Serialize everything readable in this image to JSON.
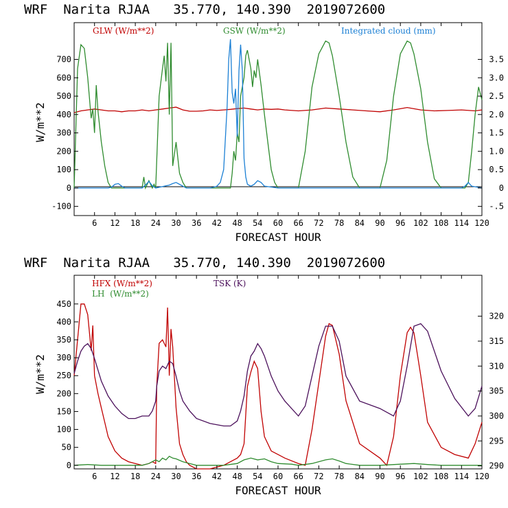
{
  "chart_data": [
    {
      "type": "line",
      "title": "WRF  Narita RJAA   35.770, 140.390  2019072600",
      "xlabel": "FORECAST HOUR",
      "ylabel": "W/m**2",
      "xlim": [
        0,
        120
      ],
      "ylim": [
        -150,
        900
      ],
      "y2lim": [
        -0.75,
        4.5
      ],
      "xticks": [
        6,
        12,
        18,
        24,
        30,
        36,
        42,
        48,
        54,
        60,
        66,
        72,
        78,
        84,
        90,
        96,
        102,
        108,
        114,
        120
      ],
      "yticks": [
        -100,
        0,
        100,
        200,
        300,
        400,
        500,
        600,
        700
      ],
      "y2ticks": [
        "-.5",
        "0",
        "0.5",
        "1.0",
        "1.5",
        "2.0",
        "2.5",
        "3.0",
        "3.5"
      ],
      "y2tick_values": [
        -0.5,
        0,
        0.5,
        1.0,
        1.5,
        2.0,
        2.5,
        3.0,
        3.5
      ],
      "grid": false,
      "legend": "top",
      "series": [
        {
          "name": "GLW (W/m**2)",
          "color": "#c00000",
          "axis": "left",
          "x": [
            0,
            2,
            4,
            6,
            8,
            10,
            12,
            14,
            16,
            18,
            20,
            22,
            24,
            26,
            28,
            30,
            32,
            34,
            36,
            38,
            40,
            42,
            44,
            46,
            48,
            50,
            52,
            54,
            56,
            58,
            60,
            62,
            66,
            70,
            74,
            78,
            82,
            86,
            90,
            94,
            98,
            102,
            106,
            110,
            114,
            118,
            120
          ],
          "y": [
            410,
            420,
            425,
            430,
            425,
            420,
            420,
            415,
            420,
            420,
            425,
            420,
            425,
            430,
            435,
            440,
            425,
            418,
            418,
            420,
            425,
            422,
            425,
            428,
            432,
            435,
            430,
            425,
            430,
            428,
            430,
            425,
            420,
            425,
            435,
            430,
            425,
            420,
            415,
            425,
            438,
            425,
            420,
            422,
            425,
            420,
            425
          ]
        },
        {
          "name": "GSW (W/m**2)",
          "color": "#2e8b2e",
          "axis": "left",
          "x": [
            0,
            1,
            2,
            3,
            4,
            5,
            5.5,
            6,
            6.5,
            7,
            8,
            9,
            10,
            11,
            12,
            20,
            20.5,
            21,
            22,
            23,
            23.5,
            24,
            25,
            26,
            26.5,
            27,
            27.5,
            28,
            28.5,
            29,
            30,
            31,
            32,
            33,
            34,
            46,
            46.5,
            47,
            47.5,
            48,
            48.5,
            49,
            50,
            50.5,
            51,
            52,
            52.5,
            53,
            53.5,
            54,
            55,
            56,
            57,
            58,
            59,
            60,
            66,
            68,
            70,
            72,
            74,
            75,
            76,
            78,
            80,
            82,
            84,
            90,
            92,
            94,
            96,
            98,
            99,
            100,
            102,
            104,
            106,
            108,
            115,
            116,
            117,
            118,
            119,
            120
          ],
          "y": [
            0,
            650,
            780,
            760,
            600,
            380,
            430,
            300,
            560,
            420,
            250,
            120,
            30,
            0,
            0,
            0,
            60,
            0,
            40,
            0,
            20,
            0,
            500,
            650,
            720,
            580,
            790,
            400,
            790,
            120,
            250,
            80,
            30,
            0,
            0,
            0,
            80,
            200,
            150,
            300,
            250,
            500,
            600,
            720,
            750,
            650,
            550,
            640,
            600,
            700,
            560,
            400,
            250,
            100,
            30,
            0,
            0,
            200,
            550,
            730,
            800,
            790,
            720,
            500,
            250,
            60,
            0,
            0,
            150,
            500,
            730,
            800,
            790,
            730,
            540,
            250,
            50,
            0,
            0,
            30,
            200,
            400,
            550,
            480
          ]
        },
        {
          "name": "Integrated cloud (mm)",
          "color": "#1a7fd4",
          "axis": "right",
          "x": [
            0,
            10,
            11,
            12,
            13,
            14,
            15,
            20,
            21,
            22,
            23,
            24,
            28,
            29,
            30,
            31,
            32,
            33,
            40,
            41,
            42,
            43,
            44,
            45,
            45.5,
            46,
            46.5,
            47,
            47.5,
            48,
            48.5,
            49,
            49.5,
            50,
            50.5,
            51,
            52,
            53,
            54,
            55,
            56,
            60,
            114,
            115,
            116,
            117,
            120
          ],
          "y": [
            0,
            0,
            0.02,
            0.1,
            0.12,
            0.05,
            0,
            0,
            0.08,
            0.18,
            0.06,
            0,
            0.08,
            0.12,
            0.15,
            0.1,
            0.05,
            0,
            0,
            0.02,
            0.05,
            0.15,
            0.5,
            2.2,
            3.5,
            4.05,
            2.6,
            2.3,
            2.7,
            1.4,
            3.2,
            3.9,
            3.2,
            0.8,
            0.3,
            0.1,
            0.05,
            0.1,
            0.2,
            0.15,
            0.05,
            0,
            0,
            0.05,
            0.15,
            0.05,
            0
          ]
        }
      ]
    },
    {
      "type": "line",
      "title": "WRF  Narita RJAA   35.770, 140.390  2019072600",
      "xlabel": "FORECAST HOUR",
      "ylabel": "W/m**2",
      "xlim": [
        0,
        120
      ],
      "ylim": [
        -10,
        530
      ],
      "y2lim": [
        289.4,
        328.2
      ],
      "xticks": [
        6,
        12,
        18,
        24,
        30,
        36,
        42,
        48,
        54,
        60,
        66,
        72,
        78,
        84,
        90,
        96,
        102,
        108,
        114,
        120
      ],
      "yticks": [
        0,
        50,
        100,
        150,
        200,
        250,
        300,
        350,
        400,
        450
      ],
      "y2ticks": [
        "290",
        "295",
        "300",
        "305",
        "310",
        "315",
        "320"
      ],
      "y2tick_values": [
        290,
        295,
        300,
        305,
        310,
        315,
        320
      ],
      "grid": false,
      "legend": "top-left",
      "series": [
        {
          "name": "HFX (W/m**2)",
          "color": "#c00000",
          "axis": "left",
          "x": [
            0,
            1,
            2,
            3,
            4,
            5,
            5.5,
            6,
            7,
            8,
            9,
            10,
            12,
            14,
            16,
            18,
            20,
            22,
            23,
            24,
            24.3,
            25,
            26,
            27,
            27.5,
            28,
            28.5,
            29,
            30,
            31,
            32,
            33,
            34,
            36,
            40,
            44,
            46,
            48,
            49,
            50,
            51,
            52,
            53,
            54,
            55,
            56,
            58,
            60,
            62,
            66,
            68,
            70,
            72,
            74,
            75,
            76,
            78,
            80,
            84,
            90,
            92,
            94,
            96,
            98,
            99,
            100,
            102,
            104,
            108,
            112,
            116,
            118,
            120
          ],
          "y": [
            250,
            350,
            450,
            450,
            420,
            320,
            390,
            250,
            200,
            160,
            120,
            80,
            40,
            20,
            10,
            5,
            0,
            5,
            10,
            5,
            220,
            340,
            350,
            330,
            440,
            250,
            380,
            330,
            160,
            60,
            30,
            10,
            0,
            -10,
            -10,
            0,
            10,
            20,
            30,
            60,
            220,
            260,
            290,
            270,
            150,
            80,
            40,
            30,
            20,
            5,
            0,
            100,
            230,
            360,
            395,
            390,
            310,
            180,
            60,
            20,
            0,
            80,
            250,
            370,
            385,
            370,
            250,
            120,
            50,
            30,
            20,
            60,
            120
          ]
        },
        {
          "name": "LH  (W/m**2)",
          "color": "#2e8b2e",
          "axis": "left",
          "x": [
            0,
            4,
            8,
            12,
            16,
            20,
            22,
            24,
            25,
            26,
            27,
            28,
            29,
            30,
            32,
            34,
            36,
            40,
            44,
            48,
            50,
            52,
            54,
            56,
            58,
            60,
            64,
            66,
            70,
            74,
            76,
            78,
            80,
            84,
            90,
            96,
            100,
            104,
            108,
            116,
            120
          ],
          "y": [
            0,
            2,
            0,
            0,
            0,
            0,
            5,
            15,
            10,
            20,
            15,
            25,
            20,
            18,
            10,
            5,
            0,
            0,
            0,
            5,
            15,
            20,
            15,
            18,
            10,
            5,
            3,
            0,
            5,
            15,
            18,
            12,
            5,
            0,
            0,
            3,
            5,
            2,
            0,
            0,
            0
          ]
        },
        {
          "name": "TSK (K)",
          "color": "#4a0f5a",
          "axis": "right",
          "x": [
            0,
            1,
            2,
            3,
            4,
            5,
            6,
            8,
            10,
            12,
            14,
            16,
            18,
            20,
            22,
            23,
            24,
            24.3,
            25,
            26,
            27,
            28,
            29,
            30,
            31,
            32,
            34,
            36,
            40,
            44,
            46,
            48,
            49,
            50,
            51,
            52,
            53,
            54,
            55,
            56,
            58,
            60,
            62,
            66,
            68,
            70,
            72,
            74,
            76,
            78,
            80,
            84,
            90,
            94,
            96,
            98,
            100,
            102,
            104,
            108,
            112,
            116,
            118,
            120
          ],
          "y": [
            308.5,
            311,
            313,
            314,
            314.5,
            313.5,
            311.5,
            307,
            304,
            302,
            300.5,
            299.5,
            299.5,
            300,
            300,
            301,
            303,
            306,
            309,
            310,
            309.5,
            311,
            310.5,
            308,
            305,
            303,
            301,
            299.5,
            298.5,
            298,
            298,
            299,
            301,
            304,
            309,
            312,
            313,
            314.5,
            313.5,
            312,
            308,
            305,
            303,
            300,
            302,
            308,
            314,
            318,
            318,
            315,
            308,
            303,
            301.5,
            300,
            303,
            310,
            318,
            318.5,
            317,
            309,
            303.5,
            300,
            301.5,
            306
          ]
        }
      ]
    }
  ]
}
